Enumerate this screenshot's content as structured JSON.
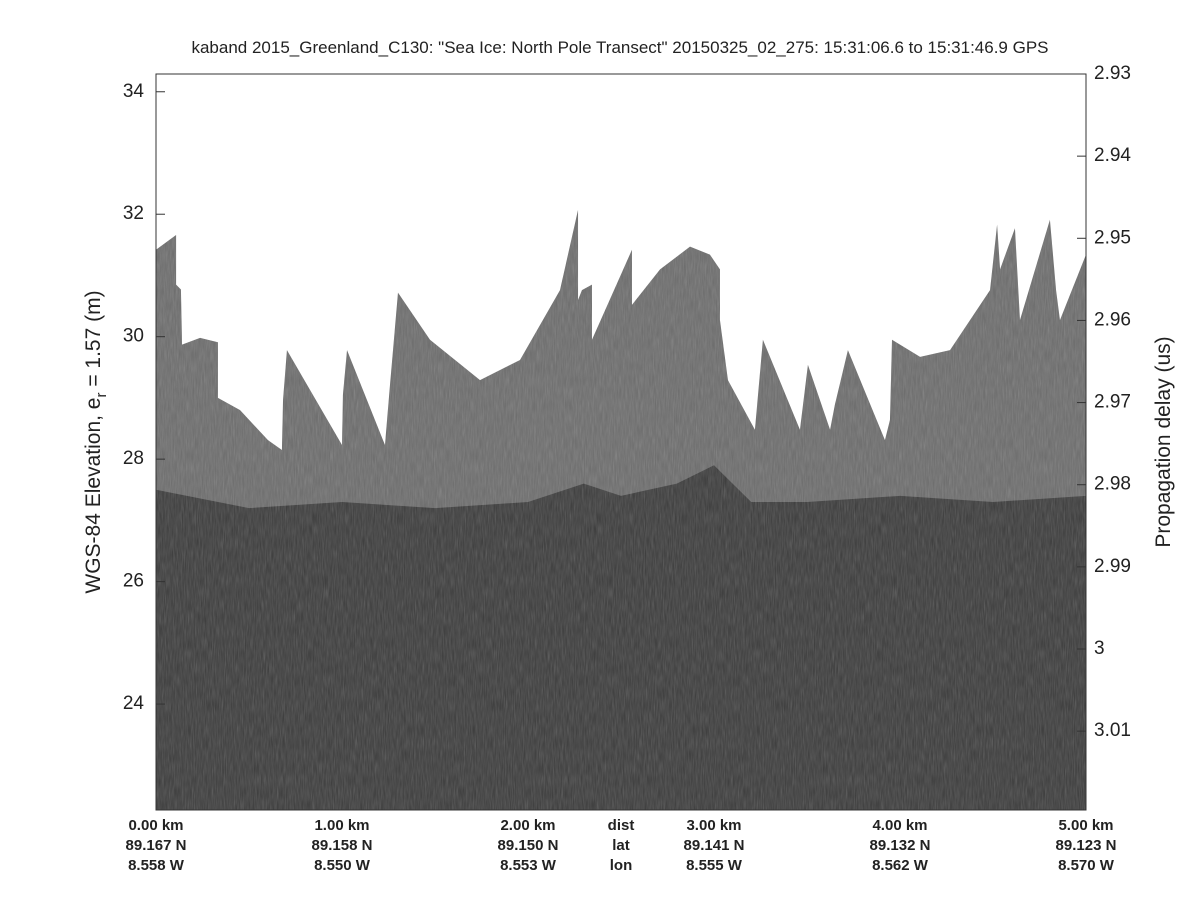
{
  "chart_data": {
    "type": "echogram",
    "title": "kaband 2015_Greenland_C130: \"Sea Ice: North Pole Transect\"  20150325_02_275: 15:31:06.6 to 15:31:46.9 GPS",
    "ylabel": "WGS-84 Elevation, e",
    "ylabel_sub": "r",
    "ylabel_end": " = 1.57 (m)",
    "y2label": "Propagation delay (us)",
    "xlim": [
      0,
      5
    ],
    "ylim": [
      22.27,
      34.29
    ],
    "yticks": [
      24,
      26,
      28,
      30,
      32,
      34
    ],
    "y2lim": [
      2.93,
      3.0196
    ],
    "y2_inverted": true,
    "y2ticks": [
      2.93,
      2.94,
      2.95,
      2.96,
      2.97,
      2.98,
      2.99,
      3,
      3.01
    ],
    "xticks": [
      {
        "value": 0,
        "label": "0.00 km"
      },
      {
        "value": 1,
        "label": "1.00 km"
      },
      {
        "value": 2,
        "label": "2.00 km"
      },
      {
        "value": 2.5,
        "label": "dist"
      },
      {
        "value": 3,
        "label": "3.00 km"
      },
      {
        "value": 4,
        "label": "4.00 km"
      },
      {
        "value": 5,
        "label": "5.00 km"
      }
    ],
    "lat_labels": [
      "89.167 N",
      "89.158 N",
      "89.150 N",
      "lat",
      "89.141 N",
      "89.132 N",
      "89.123 N"
    ],
    "lon_labels": [
      "8.558 W",
      "8.550 W",
      "8.553 W",
      "lon",
      "8.555 W",
      "8.562 W",
      "8.570 W"
    ],
    "series": [
      {
        "name": "surface",
        "color": "#6c6c6c",
        "x": [
          0,
          0.108,
          0.108,
          0.134,
          0.14,
          0.237,
          0.333,
          0.333,
          0.452,
          0.602,
          0.677,
          0.683,
          0.704,
          1.0,
          1.005,
          1.027,
          1.231,
          1.258,
          1.301,
          1.473,
          1.742,
          1.957,
          2.172,
          2.269,
          2.269,
          2.29,
          2.344,
          2.344,
          2.559,
          2.559,
          2.71,
          2.871,
          2.978,
          3.032,
          3.032,
          3.075,
          3.22,
          3.263,
          3.462,
          3.505,
          3.624,
          3.65,
          3.72,
          3.919,
          3.946,
          3.957,
          4.108,
          4.269,
          4.484,
          4.522,
          4.538,
          4.618,
          4.645,
          4.806,
          4.839,
          4.86,
          5.0
        ],
        "values": [
          31.42,
          31.66,
          30.85,
          30.77,
          29.87,
          29.98,
          29.91,
          29.0,
          28.8,
          28.31,
          28.15,
          28.97,
          29.78,
          28.23,
          29.05,
          29.78,
          28.23,
          29.21,
          30.72,
          29.95,
          29.29,
          29.62,
          30.76,
          32.07,
          30.6,
          30.76,
          30.85,
          29.95,
          31.42,
          30.52,
          31.1,
          31.47,
          31.34,
          31.1,
          30.27,
          29.29,
          28.48,
          29.95,
          28.48,
          29.54,
          28.48,
          28.89,
          29.78,
          28.31,
          28.64,
          29.95,
          29.67,
          29.78,
          30.76,
          31.83,
          31.1,
          31.77,
          30.27,
          31.91,
          30.76,
          30.27,
          31.34
        ]
      },
      {
        "name": "subsurface",
        "color": "#3a3a3a",
        "x": [
          0,
          0.5,
          1,
          1.5,
          2,
          2.3,
          2.5,
          2.8,
          3,
          3.2,
          3.5,
          4,
          4.5,
          5
        ],
        "values": [
          27.5,
          27.2,
          27.3,
          27.2,
          27.3,
          27.6,
          27.4,
          27.6,
          27.9,
          27.3,
          27.3,
          27.4,
          27.3,
          27.4
        ]
      }
    ]
  }
}
